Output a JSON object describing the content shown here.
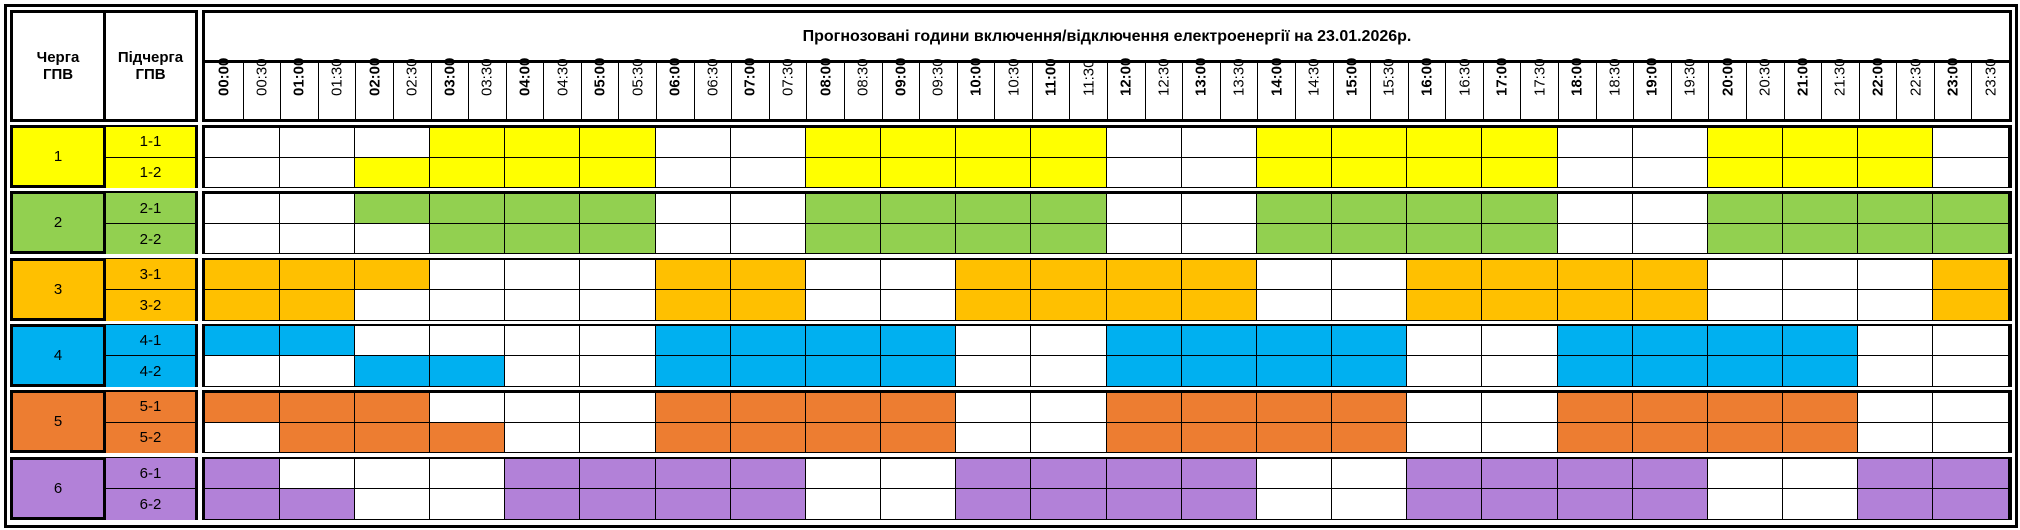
{
  "header": {
    "queue_label": "Черга ГПВ",
    "subqueue_label": "Підчерга ГПВ",
    "title": "Прогнозовані години включення/відключення електроенергії на 23.01.2026р."
  },
  "time_labels": [
    "00:00",
    "00:30",
    "01:00",
    "01:30",
    "02:00",
    "02:30",
    "03:00",
    "03:30",
    "04:00",
    "04:30",
    "05:00",
    "05:30",
    "06:00",
    "06:30",
    "07:00",
    "07:30",
    "08:00",
    "08:30",
    "09:00",
    "09:30",
    "10:00",
    "10:30",
    "11:00",
    "11:30",
    "12:00",
    "12:30",
    "13:00",
    "13:30",
    "14:00",
    "14:30",
    "15:00",
    "15:30",
    "16:00",
    "16:30",
    "17:00",
    "17:30",
    "18:00",
    "18:30",
    "19:00",
    "19:30",
    "20:00",
    "20:30",
    "21:00",
    "21:30",
    "22:00",
    "22:30",
    "23:00",
    "23:30"
  ],
  "groups": [
    {
      "queue": "1",
      "color": "#FFFF00",
      "subqueues": [
        {
          "label": "1-1",
          "hours": "000111001111001111001110"
        },
        {
          "label": "1-2",
          "hours": "001111001111001111001110"
        }
      ]
    },
    {
      "queue": "2",
      "color": "#92D050",
      "subqueues": [
        {
          "label": "2-1",
          "hours": "001111001111001111001111"
        },
        {
          "label": "2-2",
          "hours": "000111001111001111001111"
        }
      ]
    },
    {
      "queue": "3",
      "color": "#FFC000",
      "subqueues": [
        {
          "label": "3-1",
          "hours": "111000110011110011110001"
        },
        {
          "label": "3-2",
          "hours": "110000110011110011110001"
        }
      ]
    },
    {
      "queue": "4",
      "color": "#00B0F0",
      "subqueues": [
        {
          "label": "4-1",
          "hours": "110000111100111100111100"
        },
        {
          "label": "4-2",
          "hours": "001100111100111100111100"
        }
      ]
    },
    {
      "queue": "5",
      "color": "#ED7D31",
      "subqueues": [
        {
          "label": "5-1",
          "hours": "111000111100111100111100"
        },
        {
          "label": "5-2",
          "hours": "011100111100111100111100"
        }
      ]
    },
    {
      "queue": "6",
      "color": "#B281D8",
      "subqueues": [
        {
          "label": "6-1",
          "hours": "100011110011110011110011"
        },
        {
          "label": "6-2",
          "hours": "110011110011110011110011"
        }
      ]
    }
  ]
}
